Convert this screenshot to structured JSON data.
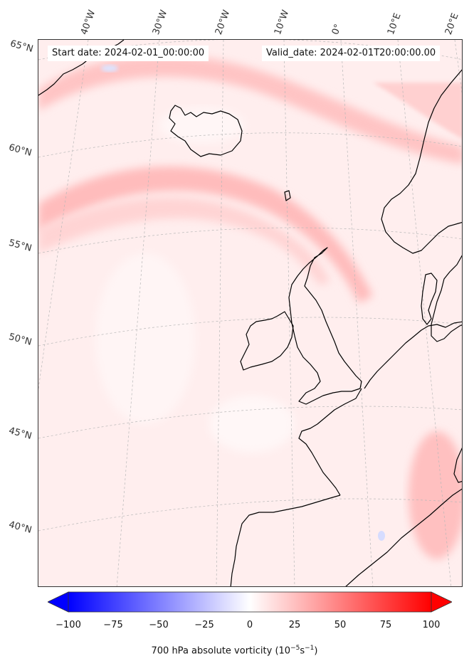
{
  "map": {
    "start_date": "Start date: 2024-02-01_00:00:00",
    "valid_date": "Valid_date: 2024-02-01T20:00:00.00",
    "longitude_labels": [
      "40°W",
      "30°W",
      "20°W",
      "10°W",
      "0°",
      "10°E",
      "20°E"
    ],
    "latitude_labels": [
      "65°N",
      "60°N",
      "55°N",
      "50°N",
      "45°N",
      "40°N"
    ]
  },
  "colorbar": {
    "label_prefix": "700 hPa absolute vorticity (10",
    "label_exp1": "−5",
    "label_mid": "s",
    "label_exp2": "−1",
    "label_suffix": ")",
    "ticks": [
      "−100",
      "−75",
      "−50",
      "−25",
      "0",
      "25",
      "50",
      "75",
      "100"
    ],
    "cmap": "bwr",
    "range": [
      -100,
      100
    ],
    "low_color": "#0000ff",
    "mid_color": "#ffffff",
    "high_color": "#ff0000",
    "extend": "both"
  },
  "colors": {
    "background_field": "#fff0f0",
    "band": "#ffc8c8",
    "coast": "#000000"
  }
}
